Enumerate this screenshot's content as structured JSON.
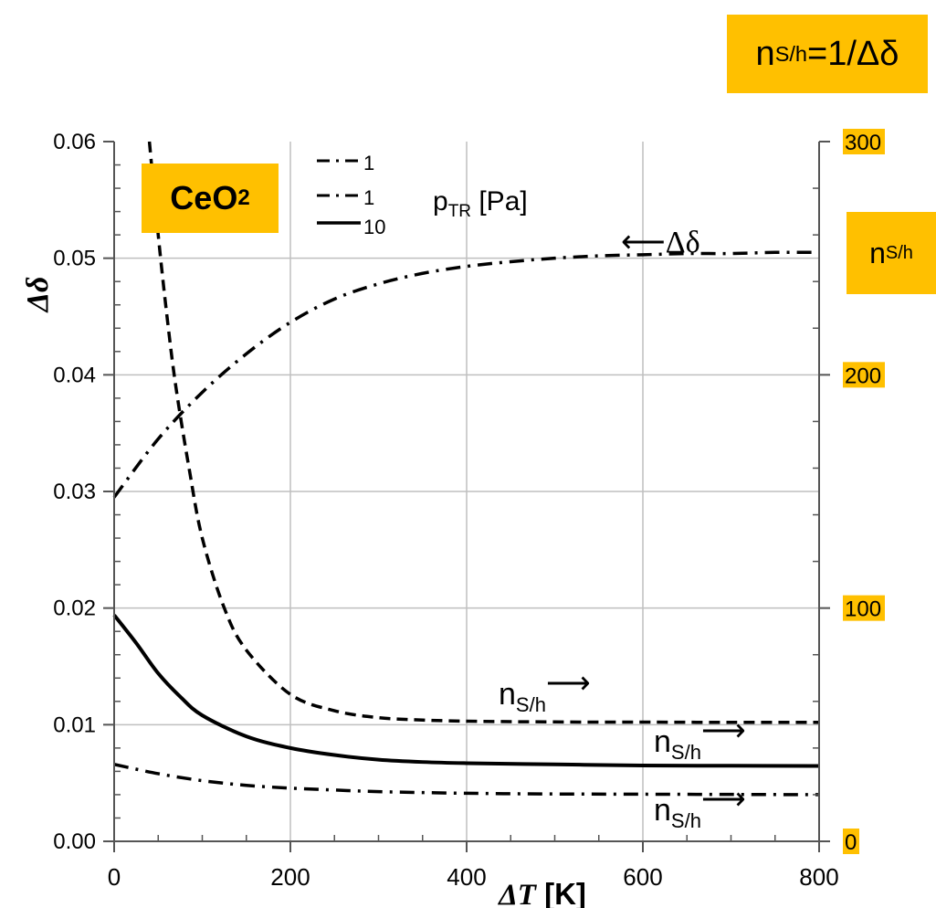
{
  "chart_data": {
    "type": "line",
    "x": {
      "label": "ΔT [K]",
      "range": [
        0,
        800
      ],
      "ticks": [
        0,
        200,
        400,
        600,
        800
      ],
      "tick_labels": [
        "0",
        "200",
        "400",
        "600",
        "800"
      ]
    },
    "y_left": {
      "label": "Δδ",
      "range": [
        0,
        0.06
      ],
      "ticks": [
        0,
        0.01,
        0.02,
        0.03,
        0.04,
        0.05,
        0.06
      ],
      "tick_labels": [
        "0.00",
        "0.01",
        "0.02",
        "0.03",
        "0.04",
        "0.05",
        "0.06"
      ]
    },
    "y_right": {
      "label": "n_S/h",
      "range": [
        0,
        300
      ],
      "ticks": [
        0,
        100,
        200,
        300
      ],
      "tick_labels": [
        "0",
        "100",
        "200",
        "300"
      ],
      "tick_label_bg": "#ffc000"
    },
    "grid": true,
    "minor_ticks": true,
    "legend": {
      "placement": "top-left",
      "title": "p",
      "title_sub": "TR",
      "title_rest": " [Pa]",
      "entries": [
        {
          "label": "1",
          "style": "dash-dot"
        },
        {
          "label": "1",
          "style": "dash-dot"
        },
        {
          "label": "10",
          "style": "solid"
        }
      ]
    },
    "series": [
      {
        "style": "dash-dot",
        "axis": "left",
        "x": [
          0,
          50,
          100,
          150,
          200,
          250,
          300,
          350,
          400,
          450,
          500,
          550,
          600,
          650,
          700,
          750,
          800
        ],
        "y": [
          0.0295,
          0.0345,
          0.0385,
          0.0418,
          0.0445,
          0.0465,
          0.0478,
          0.0487,
          0.0493,
          0.0497,
          0.05,
          0.0502,
          0.0503,
          0.0504,
          0.0504,
          0.0505,
          0.0505
        ]
      },
      {
        "style": "dashed",
        "axis": "right",
        "x": [
          40,
          50,
          60,
          70,
          85,
          100,
          125,
          150,
          200,
          250,
          300,
          350,
          400,
          450,
          500,
          550,
          600,
          700,
          800
        ],
        "y": [
          300,
          260,
          225,
          195,
          160,
          130,
          100,
          82,
          63,
          56,
          53,
          52,
          51.5,
          51.3,
          51.2,
          51.1,
          51.1,
          51,
          51
        ]
      },
      {
        "style": "solid",
        "axis": "right",
        "x": [
          0,
          25,
          50,
          75,
          100,
          150,
          200,
          250,
          300,
          350,
          400,
          500,
          600,
          700,
          800
        ],
        "y": [
          97,
          85,
          72,
          62,
          54,
          45,
          40,
          37,
          35,
          34,
          33.5,
          33,
          32.5,
          32.4,
          32.3
        ]
      },
      {
        "style": "dash-dot",
        "axis": "right",
        "x": [
          0,
          50,
          100,
          150,
          200,
          250,
          300,
          400,
          500,
          600,
          700,
          800
        ],
        "y": [
          33,
          29,
          26,
          24,
          22.8,
          22,
          21.3,
          20.6,
          20.3,
          20.2,
          20.1,
          20
        ]
      }
    ],
    "annotations": [
      {
        "text": "←Δδ",
        "at": [
          600,
          0.0518
        ]
      },
      {
        "text": "n_S/h→",
        "at": [
          510,
          0.0107
        ]
      },
      {
        "text": "n_S/h→",
        "at": [
          690,
          0.0072
        ]
      },
      {
        "text": "n_S/h→",
        "at": [
          690,
          0.002
        ]
      }
    ]
  },
  "labels": {
    "ceo2_main": "CeO",
    "ceo2_sub": "2",
    "formula_n": "n",
    "formula_sub": "S/h",
    "formula_rest": "=1/Δδ",
    "right_axis_n": "n",
    "right_axis_sub": "S/h",
    "ns_n": "n",
    "ns_sub": "S/h",
    "arrow_right": "⟶",
    "arrow_left": "⟵",
    "delta_delta": "Δδ"
  },
  "colors": {
    "highlight": "#ffc000",
    "line": "#000000",
    "grid": "#bfbfbf"
  }
}
